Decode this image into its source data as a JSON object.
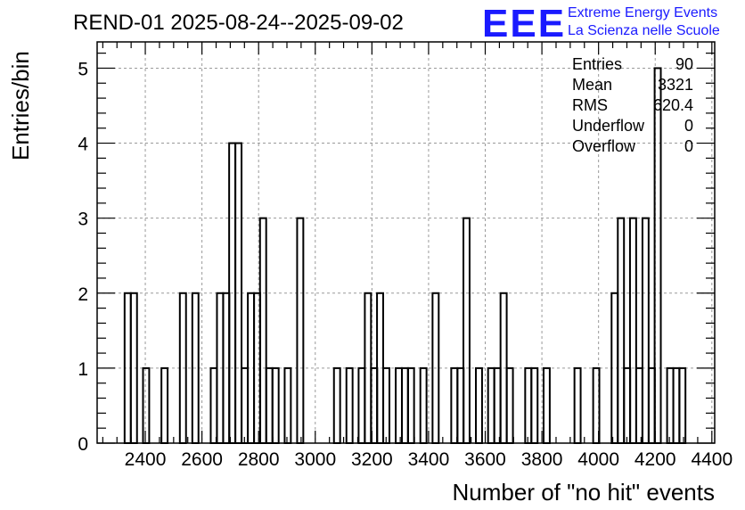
{
  "chart_data": {
    "type": "bar",
    "title": "REND-01 2025-08-24--2025-09-02",
    "xlabel": "Number of \"no hit\" events",
    "ylabel": "Entries/bin",
    "xlim": [
      2230,
      4410
    ],
    "ylim": [
      0,
      5.35
    ],
    "bin_width": 21.75,
    "x_ticks": [
      2400,
      2600,
      2800,
      3000,
      3200,
      3400,
      3600,
      3800,
      4000,
      4200,
      4400
    ],
    "y_ticks": [
      0,
      1,
      2,
      3,
      4,
      5
    ],
    "grid": true,
    "histogram_style": "step outline",
    "bins": [
      {
        "x": 2327,
        "value": 2
      },
      {
        "x": 2349,
        "value": 2
      },
      {
        "x": 2392,
        "value": 1
      },
      {
        "x": 2457,
        "value": 1
      },
      {
        "x": 2522,
        "value": 2
      },
      {
        "x": 2566,
        "value": 2
      },
      {
        "x": 2631,
        "value": 1
      },
      {
        "x": 2653,
        "value": 2
      },
      {
        "x": 2675,
        "value": 2
      },
      {
        "x": 2696,
        "value": 4
      },
      {
        "x": 2718,
        "value": 4
      },
      {
        "x": 2740,
        "value": 1
      },
      {
        "x": 2762,
        "value": 2
      },
      {
        "x": 2784,
        "value": 2
      },
      {
        "x": 2805,
        "value": 3
      },
      {
        "x": 2827,
        "value": 1
      },
      {
        "x": 2849,
        "value": 1
      },
      {
        "x": 2892,
        "value": 1
      },
      {
        "x": 2936,
        "value": 3
      },
      {
        "x": 3066,
        "value": 1
      },
      {
        "x": 3110,
        "value": 1
      },
      {
        "x": 3153,
        "value": 1
      },
      {
        "x": 3175,
        "value": 2
      },
      {
        "x": 3197,
        "value": 1
      },
      {
        "x": 3218,
        "value": 2
      },
      {
        "x": 3240,
        "value": 1
      },
      {
        "x": 3284,
        "value": 1
      },
      {
        "x": 3306,
        "value": 1
      },
      {
        "x": 3327,
        "value": 1
      },
      {
        "x": 3371,
        "value": 1
      },
      {
        "x": 3414,
        "value": 2
      },
      {
        "x": 3480,
        "value": 1
      },
      {
        "x": 3502,
        "value": 1
      },
      {
        "x": 3523,
        "value": 3
      },
      {
        "x": 3567,
        "value": 1
      },
      {
        "x": 3610,
        "value": 1
      },
      {
        "x": 3632,
        "value": 1
      },
      {
        "x": 3654,
        "value": 2
      },
      {
        "x": 3676,
        "value": 1
      },
      {
        "x": 3741,
        "value": 1
      },
      {
        "x": 3763,
        "value": 1
      },
      {
        "x": 3806,
        "value": 1
      },
      {
        "x": 3915,
        "value": 1
      },
      {
        "x": 3981,
        "value": 1
      },
      {
        "x": 4046,
        "value": 2
      },
      {
        "x": 4068,
        "value": 3
      },
      {
        "x": 4090,
        "value": 1
      },
      {
        "x": 4111,
        "value": 3
      },
      {
        "x": 4133,
        "value": 1
      },
      {
        "x": 4155,
        "value": 3
      },
      {
        "x": 4177,
        "value": 1
      },
      {
        "x": 4198,
        "value": 5
      },
      {
        "x": 4242,
        "value": 1
      },
      {
        "x": 4264,
        "value": 1
      },
      {
        "x": 4285,
        "value": 1
      }
    ],
    "stats": [
      {
        "label": "Entries",
        "value": "90"
      },
      {
        "label": "Mean",
        "value": "3321"
      },
      {
        "label": "RMS",
        "value": "620.4"
      },
      {
        "label": "Underflow",
        "value": "0"
      },
      {
        "label": "Overflow",
        "value": "0"
      }
    ]
  },
  "logo": {
    "mark": "EEE",
    "line1": "Extreme Energy Events",
    "line2": "La Scienza nelle Scuole",
    "color": "#1a1aff"
  },
  "colors": {
    "line": "#000000",
    "grid": "#9a9a9a"
  }
}
